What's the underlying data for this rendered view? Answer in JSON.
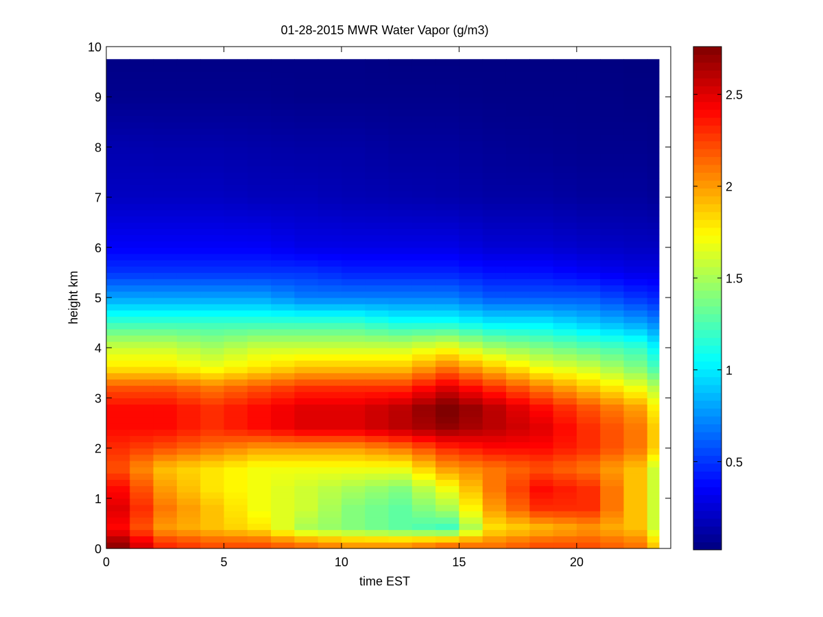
{
  "chart_data": {
    "type": "heatmap",
    "title": "01-28-2015 MWR Water Vapor (g/m3)",
    "xlabel": "time EST",
    "ylabel": "height km",
    "xlim": [
      0,
      24
    ],
    "ylim": [
      0,
      10
    ],
    "xticks": [
      0,
      5,
      10,
      15,
      20
    ],
    "yticks": [
      0,
      1,
      2,
      3,
      4,
      5,
      6,
      7,
      8,
      9,
      10
    ],
    "colorbar": {
      "colormap": "jet",
      "range": [
        0.02,
        2.76
      ],
      "ticks": [
        0.5,
        1,
        1.5,
        2,
        2.5
      ],
      "tick_labels": [
        "0.5",
        "1",
        "1.5",
        "2",
        "2.5"
      ]
    },
    "data_extent": {
      "x": [
        0,
        23.5
      ],
      "y": [
        0,
        9.75
      ]
    },
    "x_samples": [
      0.5,
      2.5,
      4.5,
      6.5,
      8.5,
      10.5,
      12.5,
      14.5,
      16.5,
      18.5,
      20.5,
      22.5,
      23.5
    ],
    "y_samples": [
      0.1,
      0.4,
      0.8,
      1.2,
      1.6,
      2.0,
      2.4,
      2.8,
      3.2,
      3.6,
      4.0,
      4.5,
      5.0,
      5.5,
      6.0,
      7.0,
      8.0,
      9.0,
      9.7
    ],
    "values": [
      [
        2.7,
        2.3,
        2.2,
        2.2,
        2.1,
        2.0,
        2.0,
        2.1,
        2.1,
        2.2,
        2.2,
        2.1,
        1.8
      ],
      [
        2.4,
        2.0,
        1.9,
        1.8,
        1.5,
        1.4,
        1.3,
        1.2,
        1.8,
        1.9,
        2.0,
        1.9,
        1.5
      ],
      [
        2.5,
        2.1,
        1.9,
        1.7,
        1.6,
        1.4,
        1.3,
        1.5,
        2.0,
        2.3,
        2.3,
        1.9,
        1.5
      ],
      [
        2.4,
        2.0,
        1.8,
        1.7,
        1.6,
        1.5,
        1.4,
        1.7,
        2.1,
        2.4,
        2.3,
        1.9,
        1.5
      ],
      [
        2.2,
        1.9,
        1.8,
        1.7,
        1.7,
        1.7,
        1.7,
        2.0,
        2.1,
        2.2,
        2.1,
        1.9,
        1.5
      ],
      [
        2.3,
        2.2,
        2.1,
        2.0,
        2.0,
        2.0,
        2.1,
        2.3,
        2.4,
        2.4,
        2.3,
        2.1,
        1.8
      ],
      [
        2.4,
        2.4,
        2.3,
        2.4,
        2.5,
        2.5,
        2.6,
        2.7,
        2.6,
        2.5,
        2.3,
        2.1,
        1.8
      ],
      [
        2.4,
        2.4,
        2.3,
        2.4,
        2.5,
        2.5,
        2.6,
        2.8,
        2.6,
        2.4,
        2.2,
        2.0,
        1.7
      ],
      [
        2.2,
        2.2,
        2.1,
        2.2,
        2.3,
        2.3,
        2.3,
        2.5,
        2.3,
        2.1,
        1.9,
        1.7,
        1.5
      ],
      [
        1.8,
        1.8,
        1.7,
        1.8,
        1.9,
        1.9,
        1.9,
        2.1,
        1.9,
        1.7,
        1.6,
        1.4,
        1.2
      ],
      [
        1.6,
        1.6,
        1.5,
        1.6,
        1.6,
        1.6,
        1.6,
        1.7,
        1.5,
        1.4,
        1.3,
        1.2,
        1.0
      ],
      [
        1.2,
        1.2,
        1.2,
        1.2,
        1.2,
        1.2,
        1.1,
        1.1,
        1.0,
        1.0,
        0.9,
        0.8,
        0.7
      ],
      [
        0.8,
        0.8,
        0.8,
        0.8,
        0.7,
        0.7,
        0.7,
        0.7,
        0.6,
        0.6,
        0.6,
        0.5,
        0.45
      ],
      [
        0.5,
        0.5,
        0.5,
        0.5,
        0.5,
        0.45,
        0.45,
        0.45,
        0.4,
        0.4,
        0.35,
        0.3,
        0.3
      ],
      [
        0.35,
        0.35,
        0.35,
        0.35,
        0.3,
        0.3,
        0.3,
        0.3,
        0.25,
        0.25,
        0.22,
        0.2,
        0.2
      ],
      [
        0.2,
        0.2,
        0.2,
        0.18,
        0.18,
        0.16,
        0.15,
        0.14,
        0.12,
        0.12,
        0.1,
        0.1,
        0.08
      ],
      [
        0.15,
        0.14,
        0.14,
        0.13,
        0.12,
        0.12,
        0.1,
        0.1,
        0.08,
        0.07,
        0.06,
        0.06,
        0.05
      ],
      [
        0.06,
        0.06,
        0.06,
        0.06,
        0.05,
        0.05,
        0.05,
        0.05,
        0.04,
        0.04,
        0.04,
        0.03,
        0.03
      ],
      [
        0.04,
        0.04,
        0.04,
        0.04,
        0.04,
        0.04,
        0.03,
        0.03,
        0.03,
        0.03,
        0.03,
        0.02,
        0.02
      ]
    ]
  }
}
